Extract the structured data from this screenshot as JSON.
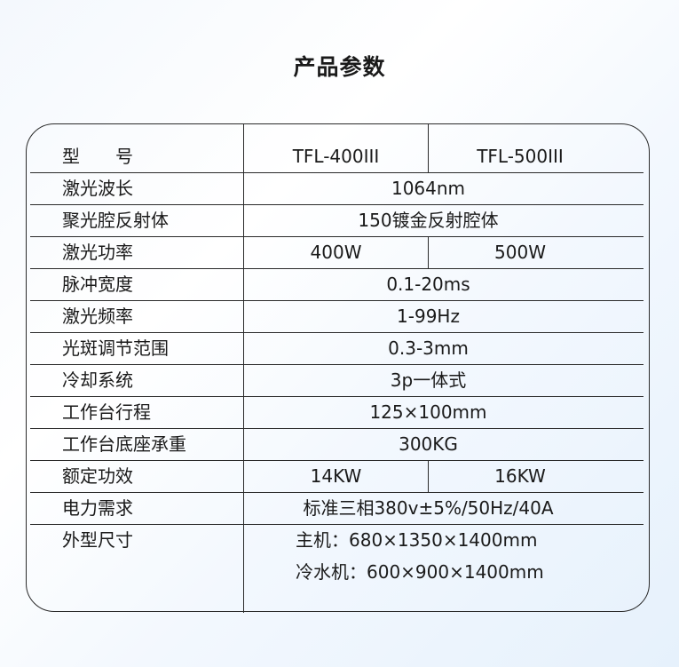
{
  "title": "产品参数",
  "header": {
    "label": "型　　号",
    "models": [
      "TFL-400III",
      "TFL-500III"
    ]
  },
  "rows": [
    {
      "label": "激光波长",
      "value": "1064nm"
    },
    {
      "label": "聚光腔反射体",
      "value": "150镀金反射腔体"
    },
    {
      "label": "激光功率",
      "values": [
        "400W",
        "500W"
      ]
    },
    {
      "label": "脉冲宽度",
      "value": "0.1-20ms"
    },
    {
      "label": "激光频率",
      "value": "1-99Hz"
    },
    {
      "label": "光斑调节范围",
      "value": "0.3-3mm"
    },
    {
      "label": "冷却系统",
      "value": "3p一体式"
    },
    {
      "label": "工作台行程",
      "value": "125×100mm"
    },
    {
      "label": "工作台底座承重",
      "value": "300KG"
    },
    {
      "label": "额定功效",
      "values": [
        "14KW",
        "16KW"
      ]
    },
    {
      "label": "电力需求",
      "value": "标准三相380v±5%/50Hz/40A"
    },
    {
      "label": "外型尺寸",
      "lines": [
        "主机：680×1350×1400mm",
        "冷水机：600×900×1400mm"
      ]
    }
  ]
}
